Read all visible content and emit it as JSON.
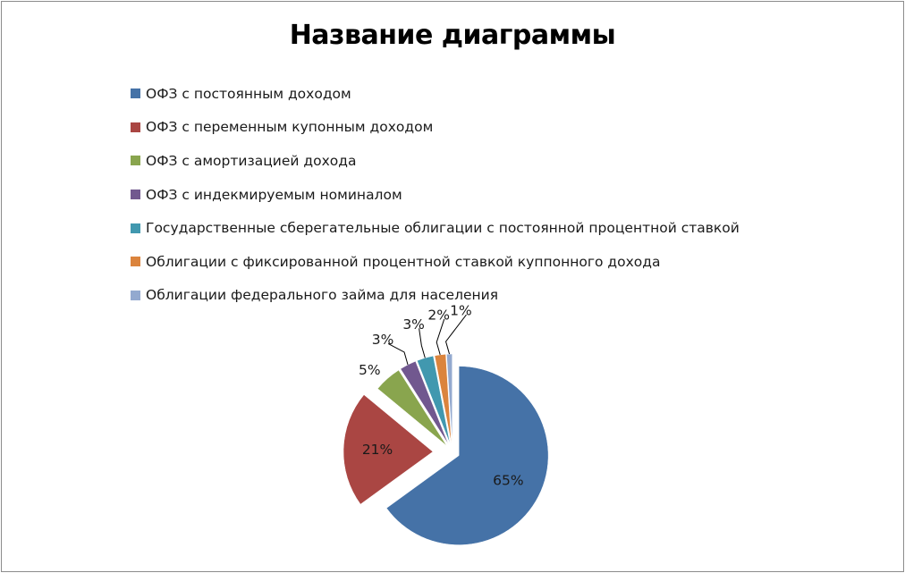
{
  "chart_data": {
    "type": "pie",
    "title": "Название диаграммы",
    "legend_position": "top",
    "categories": [
      "ОФЗ с постоянным доходом",
      "ОФЗ с переменным купонным доходом",
      "ОФЗ с амортизацией дохода",
      "ОФЗ с индекмируемым номиналом",
      "Государственные сберегательные облигации с постоянной процентной ставкой",
      "Облигации с фиксированной процентной ставкой куппонного дохода",
      "Облигации федерального займа для населения"
    ],
    "values": [
      65,
      21,
      5,
      3,
      3,
      2,
      1
    ],
    "data_labels": [
      "65%",
      "21%",
      "5%",
      "3%",
      "3%",
      "2%",
      "1%"
    ],
    "colors": [
      "#4572a7",
      "#aa4643",
      "#89a54e",
      "#71588f",
      "#4198af",
      "#db843d",
      "#93a9cf"
    ],
    "exploded": true
  }
}
